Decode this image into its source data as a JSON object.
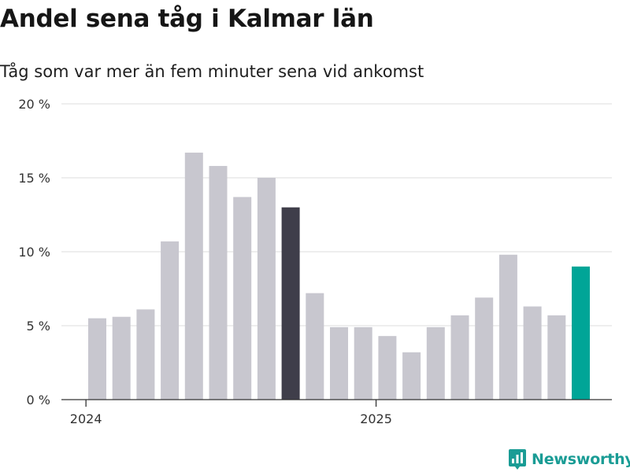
{
  "header": {
    "title": "Andel sena tåg i Kalmar län",
    "subtitle": "Tåg som var mer än fem minuter sena vid ankomst"
  },
  "brand": {
    "name": "Newsworthy",
    "icon": "bar-chart-logo-icon",
    "color": "#1a9c95"
  },
  "colors": {
    "default_bar": "#c8c7cf",
    "highlight_bar": "#3f3e4a",
    "latest_bar": "#00a597",
    "gridline": "#dddddd",
    "axis": "#333333"
  },
  "chart_data": {
    "type": "bar",
    "title": "Andel sena tåg i Kalmar län",
    "subtitle": "Tåg som var mer än fem minuter sena vid ankomst",
    "x_ticks": [
      "2024",
      "2025"
    ],
    "y_ticks": [
      "0 %",
      "5 %",
      "10 %",
      "15 %",
      "20 %"
    ],
    "ylim": [
      0,
      20
    ],
    "grid": true,
    "legend": "none",
    "categories": [
      "2024-01",
      "2024-02",
      "2024-03",
      "2024-04",
      "2024-05",
      "2024-06",
      "2024-07",
      "2024-08",
      "2024-09",
      "2024-10",
      "2024-11",
      "2024-12",
      "2025-01",
      "2025-02",
      "2025-03",
      "2025-04",
      "2025-05",
      "2025-06",
      "2025-07",
      "2025-08",
      "2025-09"
    ],
    "values": [
      5.5,
      5.6,
      6.1,
      10.7,
      16.7,
      15.8,
      13.7,
      15.0,
      13.0,
      7.2,
      4.9,
      4.9,
      4.3,
      3.2,
      4.9,
      5.7,
      6.9,
      9.8,
      6.3,
      5.7,
      9.0
    ],
    "bar_colors": [
      "default",
      "default",
      "default",
      "default",
      "default",
      "default",
      "default",
      "default",
      "highlight",
      "default",
      "default",
      "default",
      "default",
      "default",
      "default",
      "default",
      "default",
      "default",
      "default",
      "default",
      "latest"
    ]
  }
}
